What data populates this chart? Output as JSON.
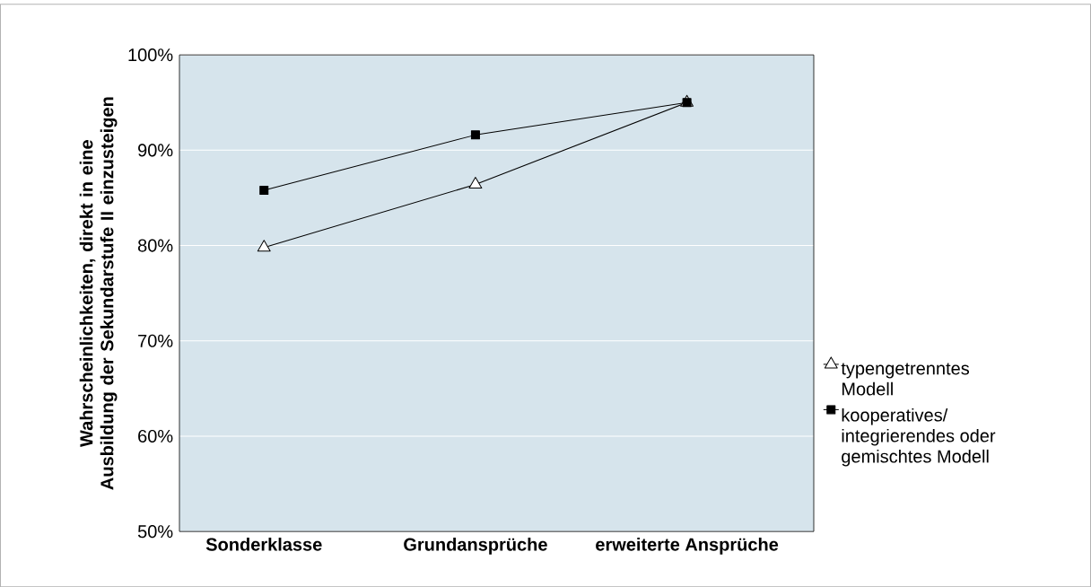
{
  "chart_data": {
    "type": "line",
    "ylabel": "Wahrscheinlichkeiten, direkt in eine Ausbildung der Sekundarstufe II einzusteigen",
    "categories": [
      "Sonderklasse",
      "Grundansprüche",
      "erweiterte Ansprüche"
    ],
    "series": [
      {
        "name": "typengetrenntes Modell",
        "color": "#000000",
        "marker": "triangle",
        "values": [
          79.8,
          86.4,
          95.0
        ]
      },
      {
        "name": "kooperatives/ integrierendes oder gemischtes Modell",
        "color": "#000000",
        "marker": "square",
        "values": [
          85.8,
          91.6,
          95.0
        ]
      }
    ],
    "ylim": [
      50,
      100
    ],
    "yticks": [
      {
        "value": 50,
        "label": "50%"
      },
      {
        "value": 60,
        "label": "60%"
      },
      {
        "value": 70,
        "label": "70%"
      },
      {
        "value": 80,
        "label": "80%"
      },
      {
        "value": 90,
        "label": "90%"
      },
      {
        "value": 100,
        "label": "100%"
      }
    ],
    "grid": "y",
    "legend": "right",
    "line_style": "solid"
  }
}
